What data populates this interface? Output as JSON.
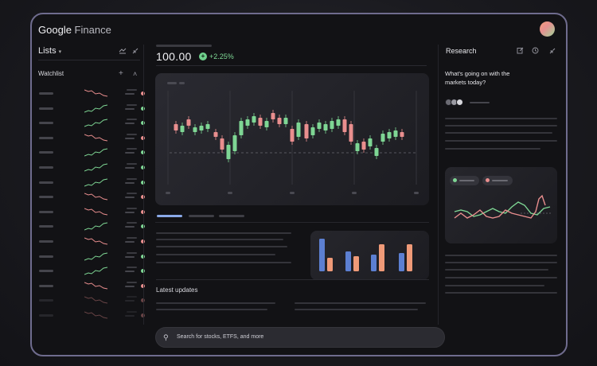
{
  "header": {
    "logo_google": "Google",
    "logo_finance": "Finance"
  },
  "lists": {
    "title": "Lists",
    "caret": "▾",
    "watchlist_label": "Watchlist",
    "add_icon": "+",
    "collapse_icon": "˄",
    "rows": [
      {
        "trend": "down"
      },
      {
        "trend": "up"
      },
      {
        "trend": "up"
      },
      {
        "trend": "down"
      },
      {
        "trend": "up"
      },
      {
        "trend": "up"
      },
      {
        "trend": "up"
      },
      {
        "trend": "down"
      },
      {
        "trend": "down"
      },
      {
        "trend": "up"
      },
      {
        "trend": "down"
      },
      {
        "trend": "up"
      },
      {
        "trend": "up"
      },
      {
        "trend": "down"
      },
      {
        "trend": "down"
      },
      {
        "trend": "down"
      }
    ]
  },
  "quote": {
    "price": "100.00",
    "change_icon": "+",
    "change": "+2.25%"
  },
  "latest_updates": "Latest updates",
  "search": {
    "icon": "⚲",
    "placeholder": "Search for stocks, ETFS, and more"
  },
  "research": {
    "title": "Research",
    "question": "What's going on with the markets today?"
  },
  "colors": {
    "up": "#7ed694",
    "down": "#e98e8e",
    "bar_blue": "#5c7fd1",
    "bar_orange": "#ef9a78",
    "accent_tab": "#8aa9e8",
    "frame": "#6f6c8e"
  }
}
